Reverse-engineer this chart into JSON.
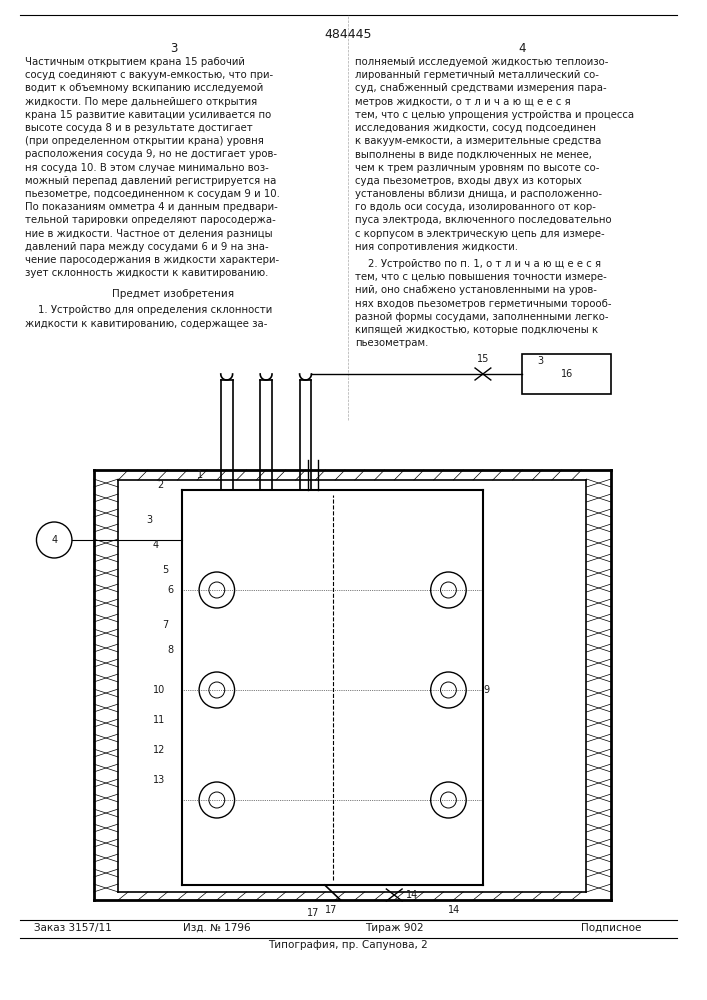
{
  "patent_number": "484445",
  "page_left": "3",
  "page_right": "4",
  "col_left_text": [
    "Частичным открытием крана 15 рабочий",
    "сосуд соединяют с вакуум-емкостью, что при-",
    "водит к объемному вскипанию исследуемой",
    "жидкости. По мере дальнейшего открытия",
    "крана 15 развитие кавитации усиливается по",
    "высоте сосуда 8 и в результате достигает",
    "(при определенном открытии крана) уровня",
    "расположения сосуда 9, но не достигает уров-",
    "ня сосуда 10. В этом случае минимально воз-",
    "можный перепад давлений регистрируется на",
    "пьезометре, подсоединенном к сосудам 9 и 10.",
    "По показаниям омметра 4 и данным предвари-",
    "тельной тарировки определяют паросодержа-",
    "ние в жидкости. Частное от деления разницы",
    "давлений пара между сосудами 6 и 9 на зна-",
    "чение паросодержания в жидкости характери-",
    "зует склонность жидкости к кавитированию."
  ],
  "predmet_header": "Предмет изобретения",
  "predmet_text_1": [
    "    1. Устройство для определения склонности",
    "жидкости к кавитированию, содержащее за-"
  ],
  "col_right_text": [
    "полняемый исследуемой жидкостью теплоизо-",
    "лированный герметичный металлический со-",
    "суд, снабженный средствами измерения пара-",
    "метров жидкости, о т л и ч а ю щ е е с я",
    "тем, что с целью упрощения устройства и процесса",
    "исследования жидкости, сосуд подсоединен",
    "к вакуум-емкости, а измерительные средства",
    "выполнены в виде подключенных не менее,",
    "чем к трем различным уровням по высоте со-",
    "суда пьезометров, входы двух из которых",
    "установлены вблизи днища, и расположенно-",
    "го вдоль оси сосуда, изолированного от кор-",
    "пуса электрода, включенного последовательно",
    "с корпусом в электрическую цепь для измере-",
    "ния сопротивления жидкости."
  ],
  "predmet_text_2": [
    "    2. Устройство по п. 1, о т л и ч а ю щ е е с я",
    "тем, что с целью повышения точности измере-",
    "ний, оно снабжено установленными на уров-",
    "нях входов пьезометров герметичными торооб-",
    "разной формы сосудами, заполненными легко-",
    "кипящей жидкостью, которые подключены к",
    "пьезометрам."
  ],
  "footer_left": "Заказ 3157/11",
  "footer_mid1": "Изд. № 1796",
  "footer_mid2": "Тираж 902",
  "footer_right": "Подписное",
  "footer_bottom": "Типография, пр. Сапунова, 2",
  "bg_color": "#ffffff",
  "text_color": "#1a1a1a",
  "line_color": "#000000"
}
